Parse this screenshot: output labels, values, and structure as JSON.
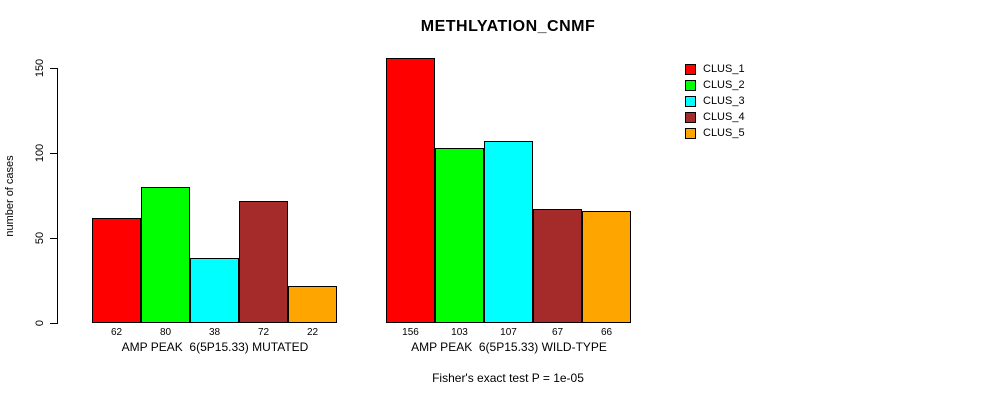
{
  "title": "METHLYATION_CNMF",
  "ylabel": "number of cases",
  "subtitle": "Fisher's exact test P = 1e-05",
  "chart_data": {
    "type": "bar",
    "title": "METHLYATION_CNMF",
    "xlabel": "",
    "ylabel": "number of cases",
    "categories": [
      "AMP PEAK  6(5P15.33) MUTATED",
      "AMP PEAK  6(5P15.33) WILD-TYPE"
    ],
    "series": [
      {
        "name": "CLUS_1",
        "color": "#ff0000",
        "values": [
          62,
          156
        ]
      },
      {
        "name": "CLUS_2",
        "color": "#00ff00",
        "values": [
          80,
          103
        ]
      },
      {
        "name": "CLUS_3",
        "color": "#00ffff",
        "values": [
          38,
          107
        ]
      },
      {
        "name": "CLUS_4",
        "color": "#a52a2a",
        "values": [
          72,
          67
        ]
      },
      {
        "name": "CLUS_5",
        "color": "#ffa500",
        "values": [
          22,
          66
        ]
      }
    ],
    "bar_value_labels_shown": true,
    "yticks": [
      0,
      50,
      100,
      150
    ],
    "ylim": [
      0,
      160
    ],
    "grid": false,
    "legend_position": "right-outside",
    "legend_entries": [
      "CLUS_1",
      "CLUS_2",
      "CLUS_3",
      "CLUS_4",
      "CLUS_5"
    ],
    "bar_border_color": "#000000",
    "annotation": "Fisher's exact test P = 1e-05"
  }
}
